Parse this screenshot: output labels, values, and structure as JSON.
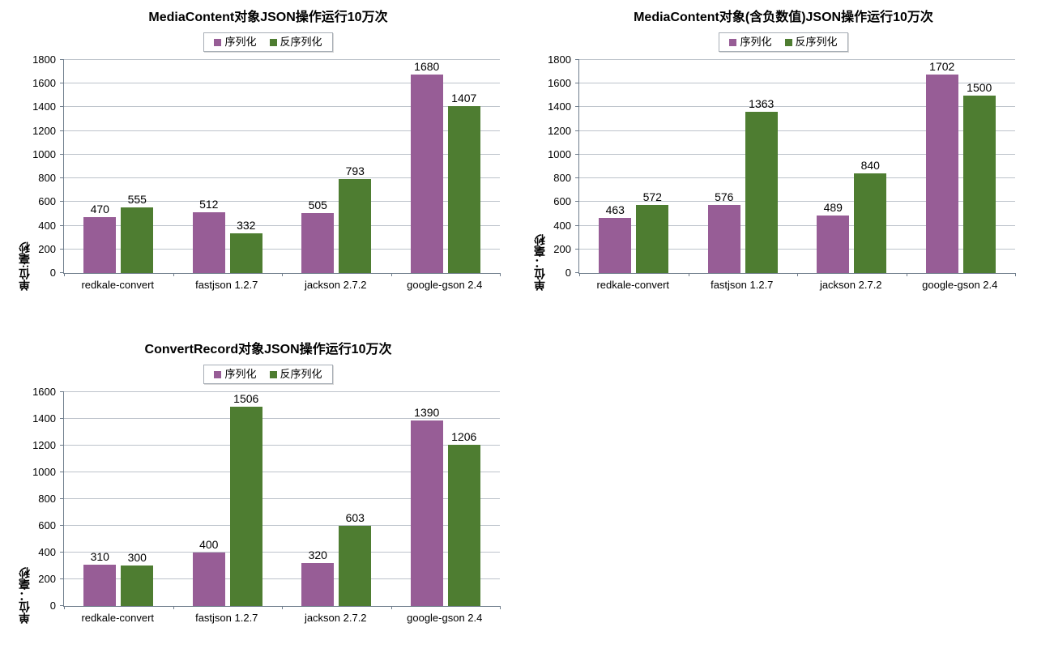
{
  "page": {
    "background": "#FFFFFF"
  },
  "colors": {
    "series1": "#975D96",
    "series2": "#4E7D31",
    "gridline": "#BDC3CB",
    "axis": "#6F7D8C",
    "legend_border": "#A7AEB6",
    "text": "#000000"
  },
  "chart_data": [
    {
      "type": "bar",
      "title": "MediaContent对象JSON操作运行10万次",
      "ylabel": "单位:毫秒",
      "xlabel": "",
      "categories": [
        "redkale-convert",
        "fastjson 1.2.7",
        "jackson 2.7.2",
        "google-gson 2.4"
      ],
      "series": [
        {
          "name": "序列化",
          "color": "#975D96",
          "values": [
            470,
            512,
            505,
            1680
          ]
        },
        {
          "name": "反序列化",
          "color": "#4E7D31",
          "values": [
            555,
            332,
            793,
            1407
          ]
        }
      ],
      "ylim": [
        0,
        1800
      ],
      "yticks": [
        0,
        200,
        400,
        600,
        800,
        1000,
        1200,
        1400,
        1600,
        1800
      ],
      "grid": true,
      "data_labels": true,
      "legend_position": "top"
    },
    {
      "type": "bar",
      "title": "MediaContent对象(含负数值)JSON操作运行10万次",
      "ylabel": "单位：毫秒",
      "xlabel": "",
      "categories": [
        "redkale-convert",
        "fastjson 1.2.7",
        "jackson 2.7.2",
        "google-gson 2.4"
      ],
      "series": [
        {
          "name": "序列化",
          "color": "#975D96",
          "values": [
            463,
            576,
            489,
            1702
          ]
        },
        {
          "name": "反序列化",
          "color": "#4E7D31",
          "values": [
            572,
            1363,
            840,
            1500
          ]
        }
      ],
      "ylim": [
        0,
        1800
      ],
      "yticks": [
        0,
        200,
        400,
        600,
        800,
        1000,
        1200,
        1400,
        1600,
        1800
      ],
      "grid": true,
      "data_labels": true,
      "legend_position": "top"
    },
    {
      "type": "bar",
      "title": "ConvertRecord对象JSON操作运行10万次",
      "ylabel": "单位：毫秒",
      "xlabel": "",
      "categories": [
        "redkale-convert",
        "fastjson 1.2.7",
        "jackson 2.7.2",
        "google-gson 2.4"
      ],
      "series": [
        {
          "name": "序列化",
          "color": "#975D96",
          "values": [
            310,
            400,
            320,
            1390
          ]
        },
        {
          "name": "反序列化",
          "color": "#4E7D31",
          "values": [
            300,
            1506,
            603,
            1206
          ]
        }
      ],
      "ylim": [
        0,
        1600
      ],
      "yticks": [
        0,
        200,
        400,
        600,
        800,
        1000,
        1200,
        1400,
        1600
      ],
      "grid": true,
      "data_labels": true,
      "legend_position": "top"
    }
  ]
}
